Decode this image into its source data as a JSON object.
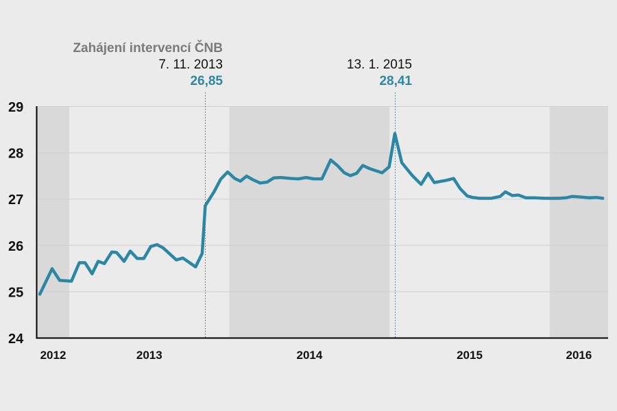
{
  "chart_data": {
    "type": "line",
    "title": "",
    "xlabel": "",
    "ylabel": "",
    "ylim": [
      24,
      29
    ],
    "xlim": [
      "2012-10-21",
      "2016-05-12"
    ],
    "yticks": [
      "24",
      "25",
      "26",
      "27",
      "28",
      "29"
    ],
    "year_labels": [
      "2012",
      "2013",
      "2014",
      "2015",
      "2016"
    ],
    "shaded_years": [
      2012,
      2014,
      2016
    ],
    "grid": true,
    "colors": {
      "line": "#2b87a4",
      "background": "#ebebeb",
      "band": "#d9d9d9",
      "grid": "#d0d0d0",
      "annotation_value": "#2b87a4",
      "annotation_title": "#7a7a7a"
    },
    "annotations": [
      {
        "title": "Zahájení intervencí ČNB",
        "date_label": "7. 11. 2013",
        "value_label": "26,85",
        "date": "2013-11-07"
      },
      {
        "title": "",
        "date_label": "13. 1. 2015",
        "value_label": "28,41",
        "date": "2015-01-13"
      }
    ],
    "series": [
      {
        "points": [
          [
            "2012-10-26",
            24.94
          ],
          [
            "2012-11-23",
            25.49
          ],
          [
            "2012-12-10",
            25.24
          ],
          [
            "2013-01-06",
            25.22
          ],
          [
            "2013-01-24",
            25.62
          ],
          [
            "2013-02-06",
            25.62
          ],
          [
            "2013-02-22",
            25.38
          ],
          [
            "2013-03-08",
            25.65
          ],
          [
            "2013-03-22",
            25.6
          ],
          [
            "2013-04-08",
            25.85
          ],
          [
            "2013-04-19",
            25.84
          ],
          [
            "2013-05-06",
            25.65
          ],
          [
            "2013-05-20",
            25.87
          ],
          [
            "2013-06-05",
            25.71
          ],
          [
            "2013-06-20",
            25.71
          ],
          [
            "2013-07-06",
            25.97
          ],
          [
            "2013-07-20",
            26.01
          ],
          [
            "2013-08-03",
            25.94
          ],
          [
            "2013-09-02",
            25.68
          ],
          [
            "2013-09-17",
            25.72
          ],
          [
            "2013-10-16",
            25.53
          ],
          [
            "2013-10-31",
            25.82
          ],
          [
            "2013-11-07",
            26.85
          ],
          [
            "2013-11-27",
            27.15
          ],
          [
            "2013-12-12",
            27.42
          ],
          [
            "2013-12-28",
            27.58
          ],
          [
            "2014-01-13",
            27.44
          ],
          [
            "2014-01-26",
            27.38
          ],
          [
            "2014-02-09",
            27.49
          ],
          [
            "2014-02-24",
            27.41
          ],
          [
            "2014-03-12",
            27.34
          ],
          [
            "2014-03-28",
            27.36
          ],
          [
            "2014-04-12",
            27.45
          ],
          [
            "2014-04-28",
            27.46
          ],
          [
            "2014-05-21",
            27.44
          ],
          [
            "2014-06-07",
            27.43
          ],
          [
            "2014-06-25",
            27.46
          ],
          [
            "2014-07-12",
            27.43
          ],
          [
            "2014-07-31",
            27.43
          ],
          [
            "2014-08-20",
            27.84
          ],
          [
            "2014-09-05",
            27.71
          ],
          [
            "2014-09-20",
            27.56
          ],
          [
            "2014-10-04",
            27.5
          ],
          [
            "2014-10-18",
            27.55
          ],
          [
            "2014-11-01",
            27.72
          ],
          [
            "2014-11-17",
            27.65
          ],
          [
            "2014-12-15",
            27.56
          ],
          [
            "2014-12-31",
            27.69
          ],
          [
            "2015-01-13",
            28.41
          ],
          [
            "2015-01-29",
            27.78
          ],
          [
            "2015-02-22",
            27.5
          ],
          [
            "2015-03-14",
            27.31
          ],
          [
            "2015-03-30",
            27.55
          ],
          [
            "2015-04-13",
            27.35
          ],
          [
            "2015-05-11",
            27.4
          ],
          [
            "2015-05-27",
            27.44
          ],
          [
            "2015-06-11",
            27.22
          ],
          [
            "2015-06-27",
            27.06
          ],
          [
            "2015-07-09",
            27.03
          ],
          [
            "2015-07-25",
            27.01
          ],
          [
            "2015-08-21",
            27.01
          ],
          [
            "2015-09-10",
            27.05
          ],
          [
            "2015-09-22",
            27.15
          ],
          [
            "2015-10-08",
            27.07
          ],
          [
            "2015-10-22",
            27.08
          ],
          [
            "2015-11-08",
            27.02
          ],
          [
            "2015-11-27",
            27.02
          ],
          [
            "2015-12-20",
            27.01
          ],
          [
            "2016-01-21",
            27.01
          ],
          [
            "2016-02-07",
            27.02
          ],
          [
            "2016-02-21",
            27.05
          ],
          [
            "2016-03-09",
            27.04
          ],
          [
            "2016-03-31",
            27.02
          ],
          [
            "2016-04-16",
            27.03
          ],
          [
            "2016-05-01",
            27.01
          ]
        ]
      }
    ]
  }
}
